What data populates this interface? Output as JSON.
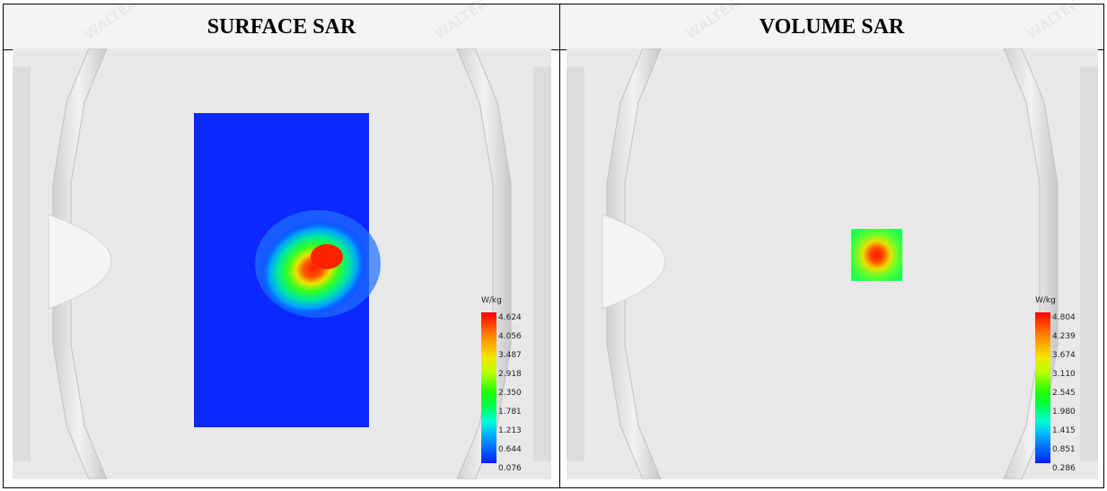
{
  "panels": {
    "left": {
      "title": "SURFACE SAR",
      "scale_unit": "W/kg",
      "scale_ticks": [
        "4.624",
        "4.056",
        "3.487",
        "2.918",
        "2.350",
        "1.781",
        "1.213",
        "0.644",
        "0.076"
      ]
    },
    "right": {
      "title": "VOLUME SAR",
      "scale_unit": "W/kg",
      "scale_ticks": [
        "4.804",
        "4.239",
        "3.674",
        "3.110",
        "2.545",
        "1.980",
        "1.415",
        "0.851",
        "0.286"
      ]
    }
  },
  "watermark": {
    "text": "WALTEK"
  }
}
